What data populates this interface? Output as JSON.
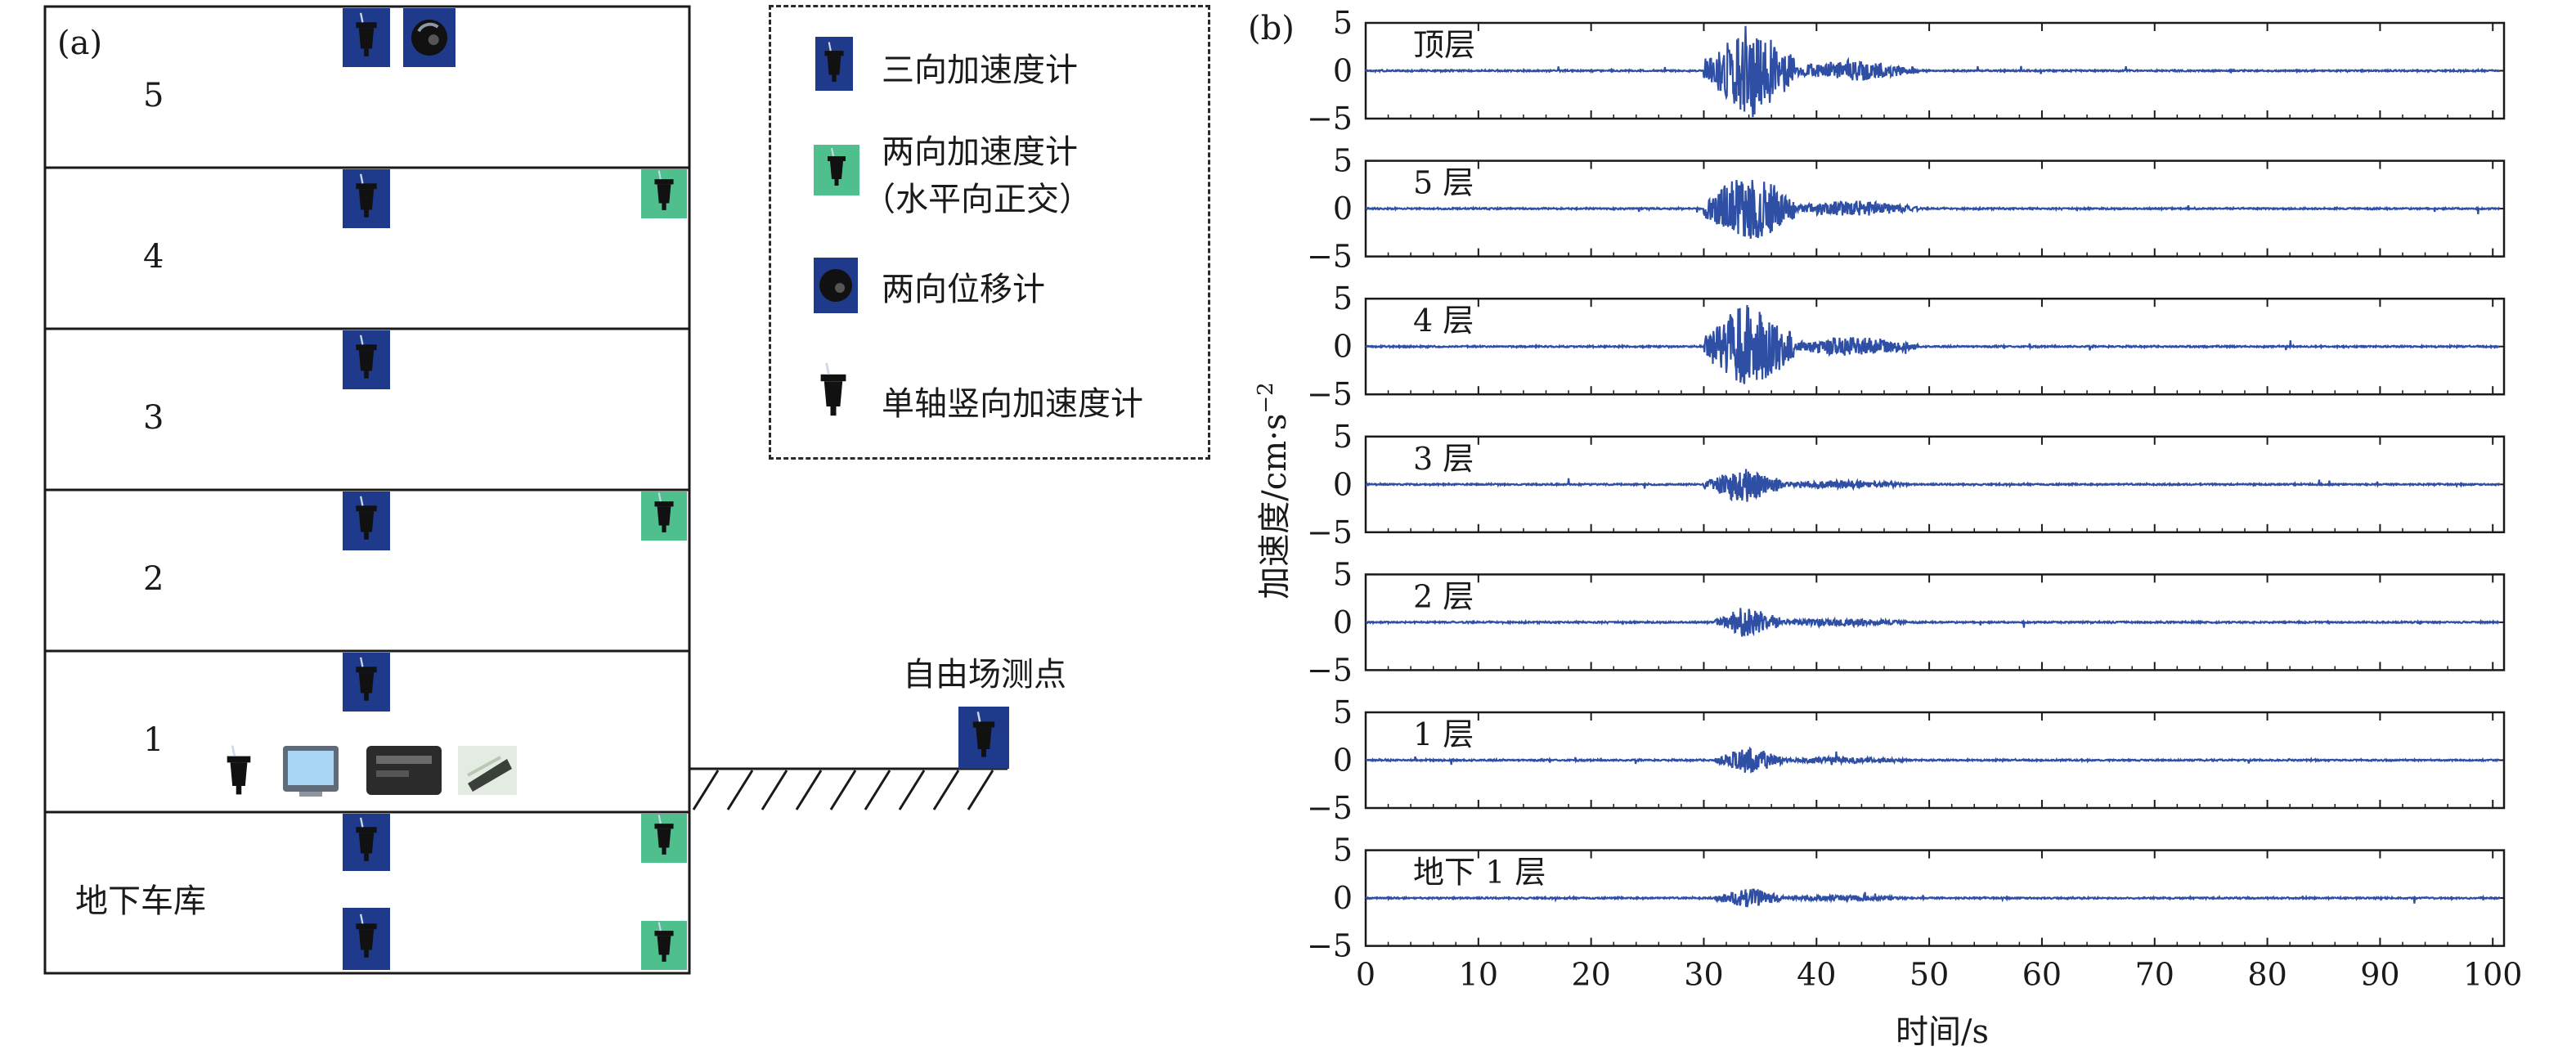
{
  "panel_a": {
    "label": "(a)",
    "floors": [
      "5",
      "4",
      "3",
      "2",
      "1",
      "地下车库"
    ],
    "free_field_label": "自由场测点",
    "legend": [
      {
        "icon": "triaxial-accelerometer-icon",
        "label_lines": [
          "三向加速度计"
        ],
        "color": "#1f3a8a"
      },
      {
        "icon": "biaxial-accelerometer-icon",
        "label_lines": [
          "两向加速度计",
          "（水平向正交）"
        ],
        "color": "#4fc08d"
      },
      {
        "icon": "biaxial-displacement-meter-icon",
        "label_lines": [
          "两向位移计"
        ],
        "color": "#1f3a8a"
      },
      {
        "icon": "uniaxial-vertical-accelerometer-icon",
        "label_lines": [
          "单轴竖向加速度计"
        ],
        "color": "#1a1a1a"
      }
    ]
  },
  "panel_b": {
    "label": "(b)"
  },
  "chart_data": {
    "type": "line",
    "x_label": "时间/s",
    "y_label": "加速度/cm·s",
    "y_label_superscript": "−2",
    "xlim": [
      0,
      101
    ],
    "x_ticks": [
      0,
      10,
      20,
      30,
      40,
      50,
      60,
      70,
      80,
      90,
      100
    ],
    "ylim": [
      -5,
      5
    ],
    "y_ticks": [
      5,
      0,
      -5
    ],
    "line_color": "#2f4fa5",
    "grid": false,
    "series": [
      {
        "name": "顶层",
        "peak_amplitude": 4.8,
        "strong_motion_s": [
          31,
          37
        ]
      },
      {
        "name": "5 层",
        "peak_amplitude": 3.7,
        "strong_motion_s": [
          31,
          37
        ]
      },
      {
        "name": "4 层",
        "peak_amplitude": 4.4,
        "strong_motion_s": [
          31,
          37
        ]
      },
      {
        "name": "3 层",
        "peak_amplitude": 1.8,
        "strong_motion_s": [
          31,
          36
        ]
      },
      {
        "name": "2 层",
        "peak_amplitude": 1.6,
        "strong_motion_s": [
          32,
          36
        ]
      },
      {
        "name": "1 层",
        "peak_amplitude": 1.3,
        "strong_motion_s": [
          32,
          36
        ]
      },
      {
        "name": "地下 1 层",
        "peak_amplitude": 1.0,
        "strong_motion_s": [
          32,
          36
        ]
      }
    ]
  }
}
